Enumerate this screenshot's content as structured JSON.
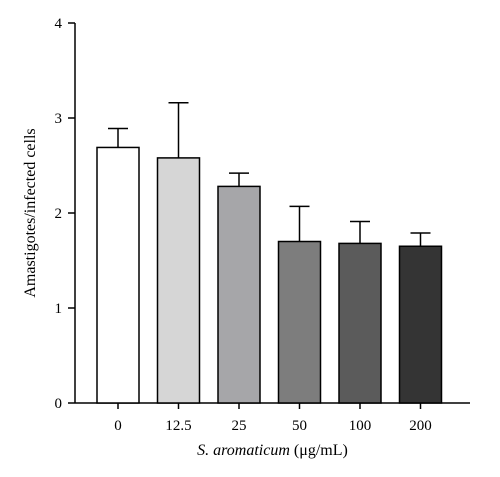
{
  "chart_data": {
    "type": "bar",
    "categories": [
      "0",
      "12.5",
      "25",
      "50",
      "100",
      "200"
    ],
    "values": [
      2.69,
      2.58,
      2.28,
      1.7,
      1.68,
      1.65
    ],
    "errors": [
      0.2,
      0.58,
      0.14,
      0.37,
      0.23,
      0.14
    ],
    "bar_colors": [
      "#ffffff",
      "#d6d6d6",
      "#a6a6a9",
      "#7d7d7d",
      "#5b5b5b",
      "#343434"
    ],
    "ylabel": "Amastigotes/infected cells",
    "xlabel": {
      "italic_part": "S. aromaticum",
      "rest": " (μg/mL)"
    },
    "ylim": [
      0,
      4
    ],
    "yticks": [
      0,
      1,
      2,
      3,
      4
    ],
    "grid": false,
    "legend": "none"
  }
}
